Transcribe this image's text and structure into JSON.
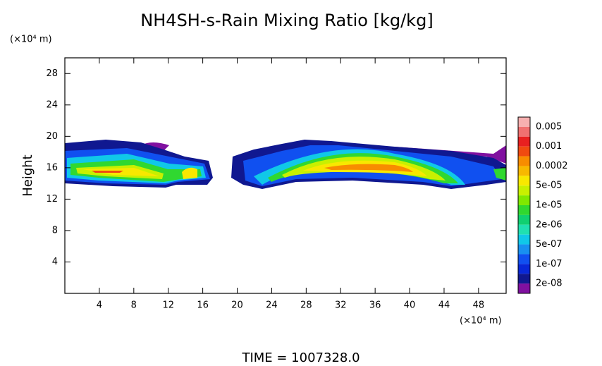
{
  "chart_data": {
    "type": "contour",
    "title": "NH4SH-s-Rain Mixing Ratio [kg/kg]",
    "y_label": "Height",
    "y_unit": "(×10⁴ m)",
    "x_unit": "(×10⁴ m)",
    "footer": "TIME = 1007328.0",
    "xlim": [
      0,
      51.2
    ],
    "ylim": [
      0,
      30
    ],
    "xticks": [
      4,
      8,
      12,
      16,
      20,
      24,
      28,
      32,
      36,
      40,
      44,
      48
    ],
    "yticks": [
      4,
      8,
      12,
      16,
      20,
      24,
      28
    ],
    "colorbar": {
      "colors": [
        "#f7b0b0",
        "#f07070",
        "#e82020",
        "#f04a10",
        "#f88c00",
        "#f8b800",
        "#f8e800",
        "#c8f000",
        "#80e800",
        "#30d830",
        "#10d070",
        "#20e0b0",
        "#10c8e8",
        "#1890f0",
        "#1050f0",
        "#0828d8",
        "#101890",
        "#8010a0"
      ],
      "ticks": [
        0.005,
        0.001,
        0.0002,
        {
          "value": 5e-05,
          "label": "5e-05"
        },
        {
          "value": 1e-05,
          "label": "1e-05"
        },
        {
          "value": 2e-06,
          "label": "2e-06"
        },
        {
          "value": 5e-07,
          "label": "5e-07"
        },
        {
          "value": 1e-07,
          "label": "1e-07"
        },
        {
          "value": 2e-08,
          "label": "2e-08"
        }
      ]
    }
  }
}
